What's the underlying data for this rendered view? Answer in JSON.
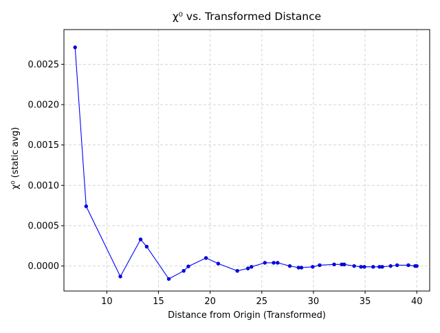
{
  "chart_data": {
    "type": "line",
    "title": "χ⁰ vs. Transformed Distance",
    "xlabel": "Distance from Origin (Transformed)",
    "ylabel": "χ⁰ (static avg)",
    "xlim": [
      5.85,
      41.25
    ],
    "ylim": [
      -0.00031,
      0.00293
    ],
    "xticks": [
      10,
      15,
      20,
      25,
      30,
      35,
      40
    ],
    "xtick_labels": [
      "10",
      "15",
      "20",
      "25",
      "30",
      "35",
      "40"
    ],
    "yticks": [
      0.0,
      0.0005,
      0.001,
      0.0015,
      0.002,
      0.0025
    ],
    "ytick_labels": [
      "0.0000",
      "0.0005",
      "0.0010",
      "0.0015",
      "0.0020",
      "0.0025"
    ],
    "grid": true,
    "colors": {
      "series": "#0000ff",
      "grid": "#cfcfcf"
    },
    "series": [
      {
        "x": [
          6.93,
          8.0,
          11.31,
          13.27,
          13.86,
          16.0,
          17.44,
          17.89,
          19.6,
          20.78,
          22.63,
          23.66,
          24.0,
          25.3,
          26.15,
          26.53,
          27.71,
          28.56,
          28.84,
          29.93,
          30.6,
          32.0,
          32.74,
          32.98,
          33.94,
          34.6,
          34.93,
          35.78,
          36.39,
          36.66,
          37.47,
          38.1,
          39.19,
          39.84,
          40.0
        ],
        "y": [
          0.00271,
          0.00074,
          -0.00013,
          0.00033,
          0.00024,
          -0.00016,
          -6e-05,
          -5e-06,
          0.0001,
          3e-05,
          -6e-05,
          -3e-05,
          -1e-05,
          4e-05,
          4e-05,
          4e-05,
          0.0,
          -2e-05,
          -2e-05,
          -1e-05,
          1e-05,
          2e-05,
          2e-05,
          2e-05,
          0.0,
          -1e-05,
          -1e-05,
          -1e-05,
          -1e-05,
          -1e-05,
          0.0,
          1e-05,
          1e-05,
          0.0,
          0.0
        ]
      }
    ]
  }
}
